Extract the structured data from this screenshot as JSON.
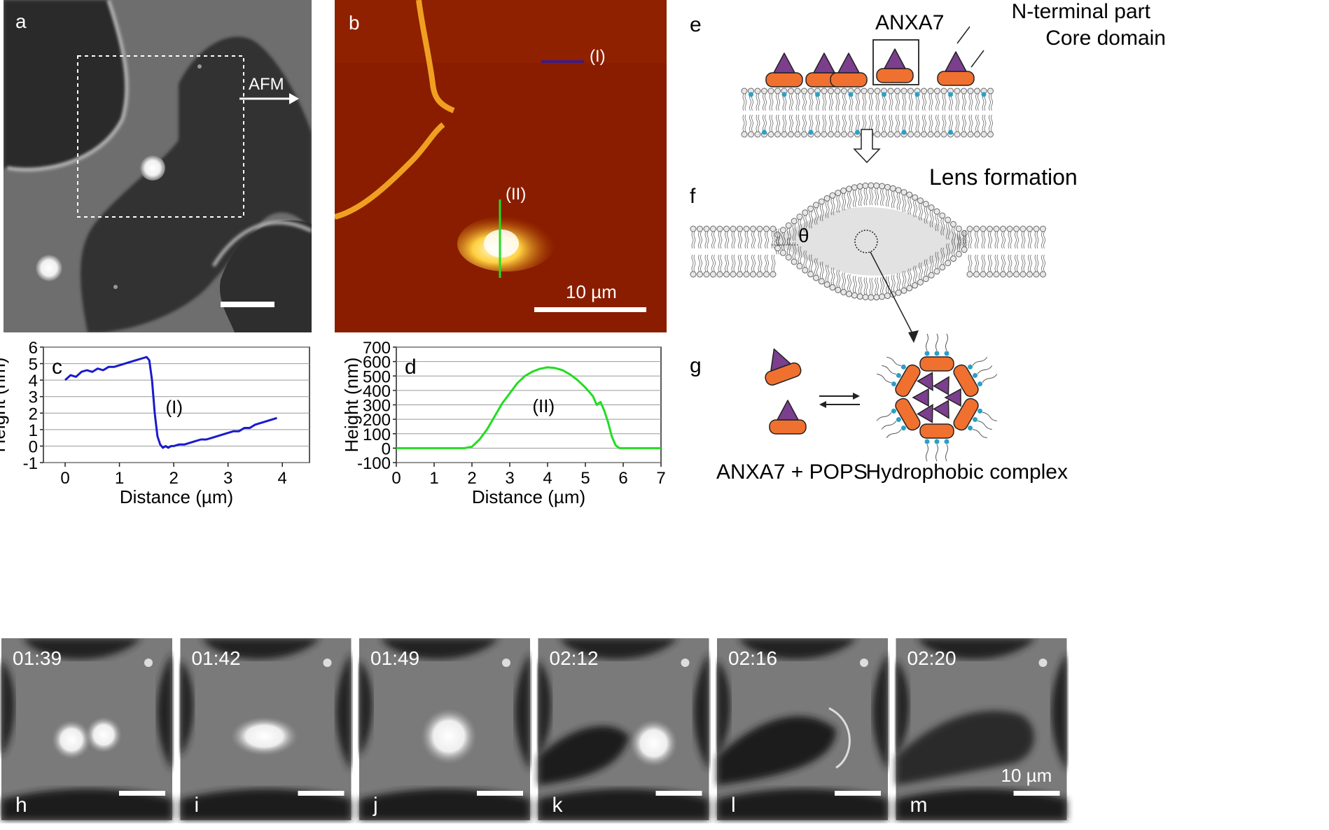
{
  "panel_labels": {
    "a": "a",
    "b": "b",
    "c": "c",
    "d": "d",
    "e": "e",
    "f": "f",
    "g": "g",
    "h": "h",
    "i": "i",
    "j": "j",
    "k": "k",
    "l": "l",
    "m": "m"
  },
  "panel_a": {
    "afm_label": "AFM"
  },
  "panel_b": {
    "line1_label": "(I)",
    "line2_label": "(II)",
    "scalebar_label": "10 µm",
    "line1_color": "#1a1acc",
    "line2_color": "#22dd22"
  },
  "panel_e": {
    "anxa7_label": "ANXA7",
    "nterm_label": "N-terminal part",
    "core_label": "Core domain"
  },
  "panel_f": {
    "lens_label": "Lens formation",
    "theta_label": "θ"
  },
  "panel_g": {
    "left_label": "ANXA7 + POPS",
    "right_label": "Hydrophobic complex"
  },
  "colors": {
    "protein_n": "#7b3f8e",
    "protein_core": "#f07030",
    "lipid_head": "#2aa0c8"
  },
  "time_series": {
    "frames": [
      {
        "time": "01:39",
        "label": "h"
      },
      {
        "time": "01:42",
        "label": "i"
      },
      {
        "time": "01:49",
        "label": "j"
      },
      {
        "time": "02:12",
        "label": "k"
      },
      {
        "time": "02:16",
        "label": "l"
      },
      {
        "time": "02:20",
        "label": "m"
      }
    ],
    "scalebar_label": "10 µm"
  },
  "chart_data": [
    {
      "panel": "c",
      "type": "line",
      "xlabel": "Distance (µm)",
      "ylabel": "Height (nm)",
      "xlim": [
        -0.4,
        4.5
      ],
      "ylim": [
        -1,
        6
      ],
      "xticks": [
        0,
        1,
        2,
        3,
        4
      ],
      "yticks": [
        -1,
        0,
        1,
        2,
        3,
        4,
        5,
        6
      ],
      "grid": true,
      "annotation": "(I)",
      "color": "#1a1acc",
      "series": [
        {
          "x": [
            0,
            0.1,
            0.2,
            0.3,
            0.4,
            0.5,
            0.6,
            0.7,
            0.8,
            0.9,
            1.0,
            1.1,
            1.2,
            1.3,
            1.4,
            1.5,
            1.55,
            1.6,
            1.65,
            1.7,
            1.75,
            1.8,
            1.85,
            1.9,
            1.95,
            2.0,
            2.1,
            2.2,
            2.3,
            2.4,
            2.5,
            2.6,
            2.7,
            2.8,
            2.9,
            3.0,
            3.1,
            3.2,
            3.3,
            3.4,
            3.5,
            3.6,
            3.7,
            3.8,
            3.9
          ],
          "y": [
            4.0,
            4.3,
            4.2,
            4.5,
            4.6,
            4.5,
            4.7,
            4.6,
            4.8,
            4.8,
            4.9,
            5.0,
            5.1,
            5.2,
            5.3,
            5.4,
            5.2,
            4.0,
            2.0,
            0.6,
            0.1,
            -0.1,
            0.0,
            -0.1,
            0.0,
            0.0,
            0.1,
            0.1,
            0.2,
            0.3,
            0.4,
            0.4,
            0.5,
            0.6,
            0.7,
            0.8,
            0.9,
            0.9,
            1.1,
            1.1,
            1.3,
            1.4,
            1.5,
            1.6,
            1.7
          ]
        }
      ]
    },
    {
      "panel": "d",
      "type": "line",
      "xlabel": "Distance (µm)",
      "ylabel": "Height (nm)",
      "xlim": [
        0,
        7
      ],
      "ylim": [
        -100,
        700
      ],
      "xticks": [
        0,
        1,
        2,
        3,
        4,
        5,
        6,
        7
      ],
      "yticks": [
        -100,
        0,
        100,
        200,
        300,
        400,
        500,
        600,
        700
      ],
      "grid": true,
      "annotation": "(II)",
      "color": "#22dd22",
      "series": [
        {
          "x": [
            0,
            0.5,
            1.0,
            1.5,
            1.8,
            2.0,
            2.2,
            2.4,
            2.6,
            2.8,
            3.0,
            3.2,
            3.4,
            3.6,
            3.8,
            4.0,
            4.2,
            4.4,
            4.6,
            4.8,
            5.0,
            5.2,
            5.3,
            5.4,
            5.5,
            5.6,
            5.7,
            5.8,
            5.9,
            6.0,
            6.5,
            7.0
          ],
          "y": [
            0,
            0,
            0,
            0,
            0,
            10,
            60,
            130,
            220,
            310,
            380,
            450,
            500,
            530,
            550,
            560,
            555,
            540,
            510,
            470,
            420,
            360,
            300,
            320,
            260,
            180,
            80,
            20,
            0,
            0,
            0,
            0
          ]
        }
      ]
    }
  ]
}
